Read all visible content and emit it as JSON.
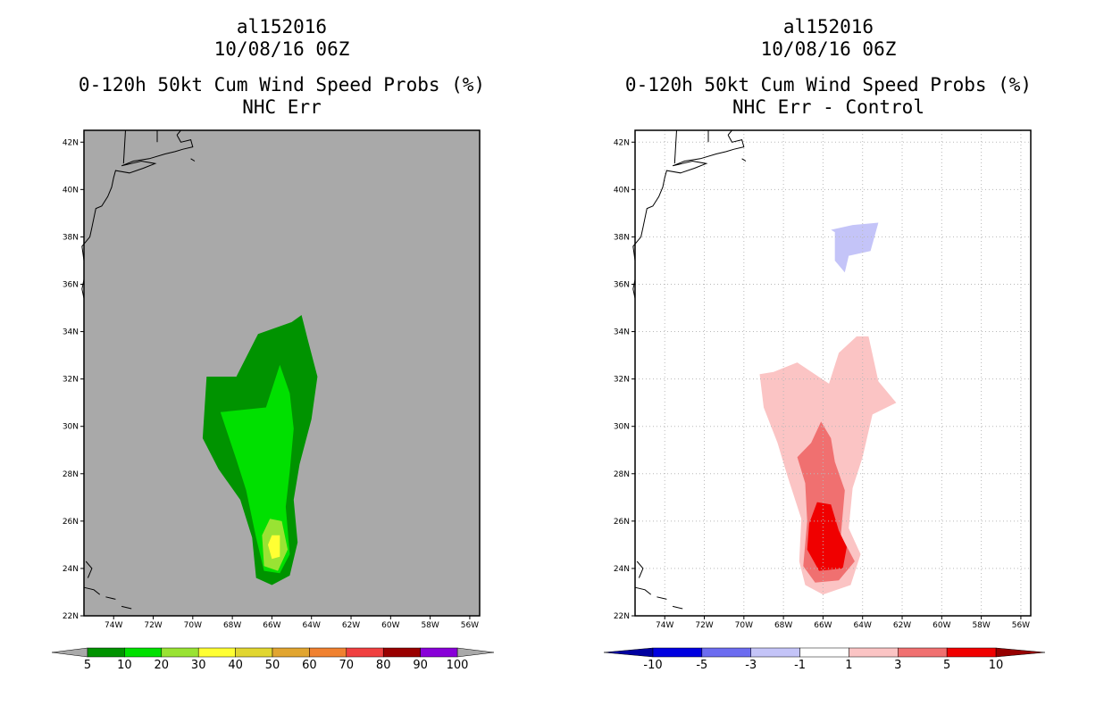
{
  "panels": [
    {
      "storm_id": "al152016",
      "date": "10/08/16 06Z",
      "title": "0-120h 50kt Cum Wind Speed Probs (%)",
      "subtitle": "NHC Err"
    },
    {
      "storm_id": "al152016",
      "date": "10/08/16 06Z",
      "title": "0-120h 50kt Cum Wind Speed Probs (%)",
      "subtitle": "NHC Err - Control"
    }
  ],
  "chart_data": [
    {
      "type": "contour_map",
      "title": "0-120h 50kt Cum Wind Speed Probs (%)",
      "subtitle": "NHC Err",
      "background_color": "#a9a9a9",
      "grid": false,
      "x_ticks": [
        "74W",
        "72W",
        "70W",
        "68W",
        "66W",
        "64W",
        "62W",
        "60W",
        "58W",
        "56W"
      ],
      "y_ticks": [
        "22N",
        "24N",
        "26N",
        "28N",
        "30N",
        "32N",
        "34N",
        "36N",
        "38N",
        "40N",
        "42N"
      ],
      "lon_range": [
        -75.5,
        -55.5
      ],
      "lat_range": [
        22,
        42.5
      ],
      "colorbar": {
        "labels": [
          "5",
          "10",
          "20",
          "30",
          "40",
          "50",
          "60",
          "70",
          "80",
          "90",
          "100"
        ],
        "colors": [
          "#009300",
          "#00e000",
          "#99e333",
          "#ffff33",
          "#e1d630",
          "#e1a530",
          "#f08130",
          "#f04040",
          "#990000",
          "#8800d8"
        ],
        "extend_color": "#a9a9a9"
      },
      "levels": [
        {
          "threshold": 5,
          "color": "#009300",
          "region": [
            [
              -67.8,
              32.1
            ],
            [
              -66.7,
              33.9
            ],
            [
              -65.0,
              34.4
            ],
            [
              -64.5,
              34.7
            ],
            [
              -64.2,
              33.7
            ],
            [
              -63.7,
              32.1
            ],
            [
              -64.0,
              30.3
            ],
            [
              -64.6,
              28.4
            ],
            [
              -64.9,
              26.9
            ],
            [
              -64.7,
              25.1
            ],
            [
              -65.1,
              23.7
            ],
            [
              -66.0,
              23.3
            ],
            [
              -66.8,
              23.6
            ],
            [
              -67.0,
              25.3
            ],
            [
              -67.6,
              26.9
            ],
            [
              -68.7,
              28.2
            ],
            [
              -69.5,
              29.5
            ],
            [
              -69.3,
              32.1
            ]
          ]
        },
        {
          "threshold": 10,
          "color": "#00e000",
          "region": [
            [
              -68.6,
              30.6
            ],
            [
              -66.3,
              30.8
            ],
            [
              -65.6,
              32.6
            ],
            [
              -65.1,
              31.4
            ],
            [
              -64.9,
              29.9
            ],
            [
              -65.1,
              28.1
            ],
            [
              -65.3,
              26.6
            ],
            [
              -65.1,
              24.6
            ],
            [
              -65.6,
              23.8
            ],
            [
              -66.4,
              23.9
            ],
            [
              -66.8,
              25.3
            ],
            [
              -67.3,
              27.3
            ],
            [
              -67.8,
              28.6
            ]
          ]
        },
        {
          "threshold": 20,
          "color": "#99e333",
          "region": [
            [
              -66.1,
              26.1
            ],
            [
              -65.5,
              26.0
            ],
            [
              -65.2,
              24.8
            ],
            [
              -65.7,
              23.9
            ],
            [
              -66.4,
              24.1
            ],
            [
              -66.5,
              25.4
            ]
          ]
        },
        {
          "threshold": 30,
          "color": "#ffff33",
          "region": [
            [
              -66.0,
              25.4
            ],
            [
              -65.6,
              25.4
            ],
            [
              -65.6,
              24.5
            ],
            [
              -66.0,
              24.4
            ],
            [
              -66.2,
              25.0
            ]
          ]
        }
      ]
    },
    {
      "type": "contour_map",
      "title": "0-120h 50kt Cum Wind Speed Probs (%)",
      "subtitle": "NHC Err - Control",
      "background_color": "#ffffff",
      "grid": true,
      "x_ticks": [
        "74W",
        "72W",
        "70W",
        "68W",
        "66W",
        "64W",
        "62W",
        "60W",
        "58W",
        "56W"
      ],
      "y_ticks": [
        "22N",
        "24N",
        "26N",
        "28N",
        "30N",
        "32N",
        "34N",
        "36N",
        "38N",
        "40N",
        "42N"
      ],
      "lon_range": [
        -75.5,
        -55.5
      ],
      "lat_range": [
        22,
        42.5
      ],
      "colorbar": {
        "labels": [
          "-10",
          "-5",
          "-3",
          "-1",
          "1",
          "3",
          "5",
          "10"
        ],
        "colors": [
          "#0000e0",
          "#6c6cf0",
          "#c4c4f8",
          "#ffffff",
          "#fbc4c4",
          "#f07070",
          "#f00000"
        ],
        "left_extend_color": "#0000a0",
        "right_extend_color": "#960000"
      },
      "levels": [
        {
          "threshold": 1,
          "color": "#fbc4c4",
          "region": [
            [
              -68.5,
              32.3
            ],
            [
              -67.3,
              32.7
            ],
            [
              -65.7,
              31.8
            ],
            [
              -65.2,
              33.1
            ],
            [
              -64.3,
              33.8
            ],
            [
              -63.7,
              33.8
            ],
            [
              -63.2,
              31.9
            ],
            [
              -62.3,
              31.0
            ],
            [
              -63.5,
              30.5
            ],
            [
              -64.0,
              28.7
            ],
            [
              -64.5,
              27.4
            ],
            [
              -64.7,
              25.7
            ],
            [
              -64.1,
              24.6
            ],
            [
              -64.6,
              23.3
            ],
            [
              -66.0,
              22.9
            ],
            [
              -66.9,
              23.3
            ],
            [
              -67.2,
              24.3
            ],
            [
              -67.1,
              26.1
            ],
            [
              -67.8,
              27.9
            ],
            [
              -68.3,
              29.3
            ],
            [
              -69.0,
              30.8
            ],
            [
              -69.2,
              32.2
            ]
          ]
        },
        {
          "threshold": 3,
          "color": "#f07070",
          "region": [
            [
              -66.6,
              29.3
            ],
            [
              -66.1,
              30.2
            ],
            [
              -65.6,
              29.5
            ],
            [
              -65.4,
              28.5
            ],
            [
              -64.9,
              27.3
            ],
            [
              -65.1,
              25.4
            ],
            [
              -64.4,
              24.3
            ],
            [
              -65.2,
              23.5
            ],
            [
              -66.4,
              23.4
            ],
            [
              -67.0,
              24.1
            ],
            [
              -66.8,
              26.0
            ],
            [
              -66.9,
              27.6
            ],
            [
              -67.3,
              28.7
            ]
          ]
        },
        {
          "threshold": 5,
          "color": "#f00000",
          "region": [
            [
              -66.3,
              26.8
            ],
            [
              -65.6,
              26.7
            ],
            [
              -65.2,
              25.6
            ],
            [
              -64.8,
              24.9
            ],
            [
              -65.0,
              24.0
            ],
            [
              -66.2,
              23.9
            ],
            [
              -66.8,
              24.8
            ],
            [
              -66.7,
              25.9
            ]
          ]
        },
        {
          "threshold": -1,
          "color": "#c4c4f8",
          "region": [
            [
              -65.6,
              38.3
            ],
            [
              -64.5,
              38.5
            ],
            [
              -63.2,
              38.6
            ],
            [
              -63.6,
              37.4
            ],
            [
              -64.7,
              37.2
            ],
            [
              -64.9,
              36.5
            ],
            [
              -65.4,
              37.0
            ],
            [
              -65.4,
              38.2
            ]
          ]
        }
      ]
    }
  ]
}
